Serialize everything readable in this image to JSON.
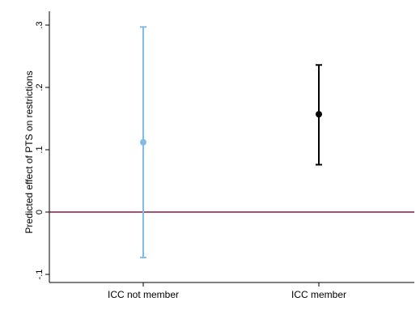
{
  "chart_data": {
    "type": "scatter",
    "title": "",
    "xlabel": "",
    "ylabel": "Predicted effect of PTS on restrictions",
    "ylim": [
      -0.11,
      0.31
    ],
    "yticks": [
      {
        "value": -0.1,
        "label": "-.1"
      },
      {
        "value": 0,
        "label": "0"
      },
      {
        "value": 0.1,
        "label": ".1"
      },
      {
        "value": 0.2,
        "label": ".2"
      },
      {
        "value": 0.3,
        "label": ".3"
      }
    ],
    "categories": [
      "ICC not member",
      "ICC member"
    ],
    "points": [
      {
        "category": "ICC not member",
        "estimate": 0.112,
        "lower": -0.073,
        "upper": 0.297,
        "color": "#7fbde6"
      },
      {
        "category": "ICC member",
        "estimate": 0.157,
        "lower": 0.076,
        "upper": 0.236,
        "color": "#000000"
      }
    ],
    "reference_line": {
      "value": 0,
      "color": "#8b1a3a"
    },
    "grid": false,
    "legend": "none"
  }
}
